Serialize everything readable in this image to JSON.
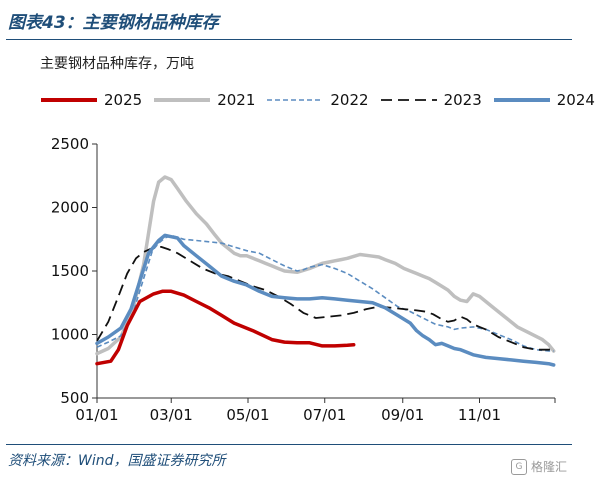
{
  "figure": {
    "title": "图表43：主要钢材品种库存",
    "source": "资料来源：Wind，国盛证券研究所",
    "watermark": "格隆汇"
  },
  "chart_data": {
    "type": "line",
    "title": "",
    "subtitle": "主要钢材品种库存，万吨",
    "xlabel": "",
    "ylabel": "",
    "ylim": [
      500,
      2500
    ],
    "yticks": [
      500,
      1000,
      1500,
      2000,
      2500
    ],
    "xlim": [
      1,
      365
    ],
    "xticks": [
      {
        "label": "01/01",
        "day": 1
      },
      {
        "label": "03/01",
        "day": 60
      },
      {
        "label": "05/01",
        "day": 121
      },
      {
        "label": "07/01",
        "day": 182
      },
      {
        "label": "09/01",
        "day": 244
      },
      {
        "label": "11/01",
        "day": 305
      }
    ],
    "grid": false,
    "legend_position": "top",
    "series": [
      {
        "name": "2025",
        "color": "#c00000",
        "style": "solid",
        "width": 3.5,
        "x": [
          1,
          12,
          18,
          25,
          35,
          46,
          53,
          60,
          70,
          80,
          90,
          100,
          110,
          125,
          140,
          150,
          160,
          170,
          180,
          190,
          200,
          205
        ],
        "y": [
          770,
          790,
          880,
          1070,
          1260,
          1320,
          1340,
          1340,
          1310,
          1260,
          1210,
          1150,
          1090,
          1030,
          960,
          940,
          935,
          935,
          910,
          910,
          915,
          920
        ]
      },
      {
        "name": "2021",
        "color": "#bfbfbf",
        "style": "solid",
        "width": 3.5,
        "x": [
          1,
          10,
          20,
          30,
          38,
          42,
          46,
          50,
          55,
          60,
          65,
          72,
          80,
          88,
          95,
          100,
          105,
          110,
          115,
          120,
          125,
          130,
          135,
          140,
          145,
          150,
          160,
          170,
          180,
          185,
          190,
          195,
          200,
          210,
          218,
          225,
          230,
          238,
          245,
          250,
          255,
          260,
          265,
          270,
          275,
          280,
          285,
          290,
          295,
          300,
          305,
          315,
          325,
          335,
          345,
          355,
          360,
          364
        ],
        "y": [
          850,
          890,
          980,
          1220,
          1550,
          1800,
          2050,
          2200,
          2240,
          2220,
          2150,
          2050,
          1950,
          1870,
          1780,
          1720,
          1680,
          1640,
          1620,
          1620,
          1600,
          1580,
          1560,
          1540,
          1520,
          1500,
          1490,
          1520,
          1560,
          1570,
          1580,
          1590,
          1600,
          1630,
          1620,
          1610,
          1590,
          1560,
          1520,
          1500,
          1480,
          1460,
          1440,
          1410,
          1380,
          1350,
          1300,
          1270,
          1260,
          1320,
          1300,
          1220,
          1140,
          1060,
          1010,
          960,
          920,
          870
        ]
      },
      {
        "name": "2022",
        "color": "#5b8cc0",
        "style": "dashed",
        "width": 1.6,
        "x": [
          1,
          10,
          20,
          30,
          38,
          45,
          50,
          55,
          60,
          70,
          80,
          90,
          100,
          110,
          120,
          130,
          140,
          150,
          160,
          165,
          170,
          180,
          190,
          200,
          210,
          220,
          230,
          240,
          250,
          260,
          270,
          280,
          285,
          290,
          300,
          310,
          320,
          330,
          340,
          350,
          360,
          364
        ],
        "y": [
          900,
          940,
          990,
          1180,
          1440,
          1660,
          1720,
          1760,
          1780,
          1750,
          1740,
          1730,
          1720,
          1690,
          1660,
          1640,
          1590,
          1540,
          1500,
          1510,
          1530,
          1550,
          1520,
          1480,
          1420,
          1360,
          1290,
          1220,
          1180,
          1130,
          1080,
          1060,
          1040,
          1050,
          1060,
          1040,
          1000,
          960,
          910,
          880,
          870,
          870
        ]
      },
      {
        "name": "2023",
        "color": "#111111",
        "style": "dashed-long",
        "width": 1.8,
        "x": [
          1,
          10,
          18,
          25,
          32,
          38,
          45,
          52,
          58,
          65,
          75,
          85,
          95,
          105,
          115,
          125,
          135,
          145,
          155,
          165,
          175,
          185,
          195,
          205,
          215,
          225,
          235,
          245,
          255,
          262,
          268,
          275,
          280,
          285,
          290,
          295,
          300,
          305,
          310,
          320,
          330,
          340,
          350,
          360,
          364
        ],
        "y": [
          950,
          1100,
          1300,
          1480,
          1600,
          1650,
          1680,
          1690,
          1670,
          1640,
          1580,
          1520,
          1480,
          1460,
          1420,
          1380,
          1350,
          1300,
          1240,
          1170,
          1130,
          1140,
          1150,
          1170,
          1200,
          1220,
          1210,
          1200,
          1190,
          1180,
          1160,
          1120,
          1100,
          1110,
          1140,
          1120,
          1080,
          1060,
          1040,
          980,
          940,
          900,
          880,
          880,
          890
        ]
      },
      {
        "name": "2024",
        "color": "#5b8cc0",
        "style": "solid",
        "width": 3.5,
        "x": [
          1,
          10,
          20,
          28,
          35,
          42,
          50,
          55,
          60,
          65,
          70,
          80,
          90,
          100,
          110,
          120,
          130,
          140,
          150,
          160,
          170,
          180,
          190,
          200,
          210,
          220,
          230,
          240,
          250,
          255,
          260,
          265,
          270,
          275,
          280,
          285,
          290,
          295,
          300,
          310,
          320,
          330,
          340,
          350,
          360,
          364
        ],
        "y": [
          930,
          980,
          1050,
          1200,
          1420,
          1640,
          1740,
          1780,
          1770,
          1760,
          1700,
          1620,
          1540,
          1460,
          1420,
          1390,
          1340,
          1300,
          1290,
          1280,
          1280,
          1290,
          1280,
          1270,
          1260,
          1250,
          1210,
          1150,
          1090,
          1030,
          990,
          960,
          920,
          930,
          910,
          890,
          880,
          860,
          840,
          820,
          810,
          800,
          790,
          780,
          770,
          760
        ]
      }
    ]
  }
}
